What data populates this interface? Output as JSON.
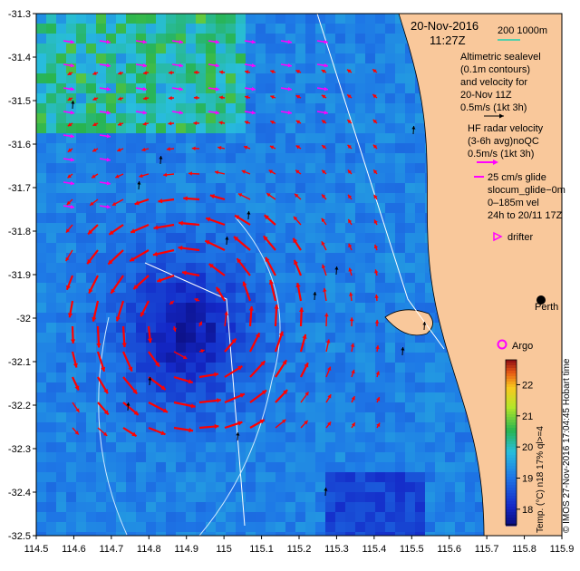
{
  "map": {
    "lon_range": [
      114.5,
      115.9
    ],
    "lat_range": [
      -32.5,
      -31.3
    ],
    "x_ticks": [
      "114.5",
      "114.6",
      "114.7",
      "114.8",
      "114.9",
      "115",
      "115.1",
      "115.2",
      "115.3",
      "115.4",
      "115.5",
      "115.6",
      "115.7",
      "115.8",
      "115.9"
    ],
    "y_ticks": [
      "-31.3",
      "-31.4",
      "-31.5",
      "-31.6",
      "-31.7",
      "-31.8",
      "-31.9",
      "-32",
      "-32.1",
      "-32.2",
      "-32.3",
      "-32.4",
      "-32.5"
    ],
    "land_color": "#f9c89b",
    "coast_line_color": "#000000"
  },
  "legend": {
    "date": "20-Nov-2016",
    "time": "11:27Z",
    "depth_scale": "200  1000m",
    "altimetric": [
      "Altimetric sealevel",
      "(0.1m contours)",
      "and velocity for",
      "20-Nov 11Z",
      "0.5m/s (1kt 3h)"
    ],
    "hf_radar": [
      "HF radar velocity",
      "(3-6h avg)noQC",
      "0.5m/s (1kt 3h)"
    ],
    "glider": [
      "25 cm/s glide",
      "slocum_glide−0m",
      "0–185m vel",
      "24h to 20/11 17Z"
    ],
    "drifter": "drifter",
    "places": {
      "perth": "Perth",
      "argo": "Argo"
    },
    "arrow_color_altimetry": "#000000",
    "arrow_color_hf": "#ff00ff",
    "arrow_color_current": "#ff0000"
  },
  "colorbar": {
    "ticks": [
      "22",
      "21",
      "20",
      "19",
      "18"
    ],
    "range": [
      17.5,
      22.8
    ],
    "label": "Temp. (°C) n18 17% ql>=4"
  },
  "credit": "© IMOS 27-Nov-2016 17:04:45 Hobart time"
}
